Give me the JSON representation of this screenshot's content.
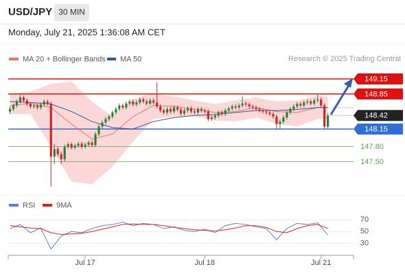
{
  "header": {
    "symbol": "USD/JPY",
    "timeframe": "30 MIN",
    "datetime": "Monday, July 21, 2025 1:36:08 AM CET",
    "credit": "Research © 2025 Trading Central"
  },
  "chart_data": [
    {
      "type": "candlestick",
      "up_color": "#2e7d32",
      "down_color": "#c62828",
      "xlim": [
        -0.5,
        100.5
      ],
      "ylim": [
        146.85,
        149.56
      ],
      "xticks": [
        {
          "value": 22,
          "label": "Jul 17"
        },
        {
          "value": 57,
          "label": "Jul 18"
        },
        {
          "value": 91,
          "label": "Jul 21"
        }
      ],
      "candles": [
        [
          148.5,
          148.6,
          148.45,
          148.55
        ],
        [
          148.55,
          148.66,
          148.51,
          148.62
        ],
        [
          148.62,
          148.74,
          148.58,
          148.7
        ],
        [
          148.7,
          148.83,
          148.66,
          148.78
        ],
        [
          148.78,
          148.82,
          148.68,
          148.72
        ],
        [
          148.72,
          148.76,
          148.61,
          148.65
        ],
        [
          148.65,
          148.69,
          148.56,
          148.6
        ],
        [
          148.6,
          148.66,
          148.56,
          148.62
        ],
        [
          148.62,
          148.66,
          148.54,
          148.58
        ],
        [
          148.58,
          148.68,
          148.54,
          148.64
        ],
        [
          148.64,
          148.74,
          148.6,
          148.7
        ],
        [
          148.7,
          148.74,
          148.62,
          148.66
        ],
        [
          148.66,
          148.7,
          147.0,
          147.6
        ],
        [
          147.6,
          147.85,
          147.45,
          147.75
        ],
        [
          147.75,
          147.8,
          147.6,
          147.65
        ],
        [
          147.65,
          147.7,
          147.45,
          147.55
        ],
        [
          147.55,
          147.84,
          147.5,
          147.8
        ],
        [
          147.8,
          147.89,
          147.76,
          147.85
        ],
        [
          147.85,
          147.89,
          147.74,
          147.78
        ],
        [
          147.78,
          147.86,
          147.74,
          147.82
        ],
        [
          147.82,
          147.9,
          147.78,
          147.86
        ],
        [
          147.86,
          147.9,
          147.76,
          147.8
        ],
        [
          147.8,
          147.88,
          147.76,
          147.84
        ],
        [
          147.84,
          147.92,
          147.8,
          147.88
        ],
        [
          147.88,
          147.92,
          147.79,
          147.83
        ],
        [
          147.83,
          148.09,
          147.79,
          148.05
        ],
        [
          148.05,
          148.24,
          148.01,
          148.2
        ],
        [
          148.2,
          148.32,
          148.16,
          148.28
        ],
        [
          148.28,
          148.39,
          148.24,
          148.35
        ],
        [
          148.35,
          148.44,
          148.31,
          148.4
        ],
        [
          148.4,
          148.52,
          148.36,
          148.48
        ],
        [
          148.48,
          148.59,
          148.44,
          148.55
        ],
        [
          148.55,
          148.66,
          148.51,
          148.62
        ],
        [
          148.62,
          148.66,
          148.54,
          148.58
        ],
        [
          148.58,
          148.7,
          148.54,
          148.66
        ],
        [
          148.66,
          148.74,
          148.62,
          148.7
        ],
        [
          148.7,
          148.74,
          148.6,
          148.64
        ],
        [
          148.64,
          148.72,
          148.6,
          148.68
        ],
        [
          148.68,
          148.78,
          148.64,
          148.74
        ],
        [
          148.74,
          148.78,
          148.66,
          148.7
        ],
        [
          148.7,
          148.74,
          148.62,
          148.66
        ],
        [
          148.66,
          148.76,
          148.62,
          148.72
        ],
        [
          148.72,
          148.76,
          148.64,
          148.68
        ],
        [
          148.68,
          149.08,
          148.56,
          148.6
        ],
        [
          148.6,
          148.64,
          148.48,
          148.52
        ],
        [
          148.52,
          148.56,
          148.44,
          148.48
        ],
        [
          148.48,
          148.59,
          148.44,
          148.55
        ],
        [
          148.55,
          148.59,
          148.46,
          148.5
        ],
        [
          148.5,
          148.62,
          148.46,
          148.58
        ],
        [
          148.58,
          148.62,
          148.5,
          148.54
        ],
        [
          148.54,
          148.58,
          148.42,
          148.46
        ],
        [
          148.46,
          148.56,
          148.42,
          148.52
        ],
        [
          148.52,
          148.6,
          148.48,
          148.56
        ],
        [
          148.56,
          148.6,
          148.46,
          148.5
        ],
        [
          148.5,
          148.54,
          148.44,
          148.48
        ],
        [
          148.48,
          148.59,
          148.44,
          148.55
        ],
        [
          148.55,
          148.59,
          148.48,
          148.52
        ],
        [
          148.52,
          148.56,
          148.46,
          148.5
        ],
        [
          148.5,
          148.54,
          148.31,
          148.35
        ],
        [
          148.35,
          148.42,
          148.31,
          148.38
        ],
        [
          148.38,
          148.46,
          148.34,
          148.42
        ],
        [
          148.42,
          148.52,
          148.38,
          148.48
        ],
        [
          148.48,
          148.52,
          148.41,
          148.45
        ],
        [
          148.45,
          148.56,
          148.41,
          148.52
        ],
        [
          148.52,
          148.6,
          148.48,
          148.56
        ],
        [
          148.56,
          148.64,
          148.52,
          148.6
        ],
        [
          148.6,
          148.64,
          148.54,
          148.58
        ],
        [
          148.58,
          148.66,
          148.54,
          148.62
        ],
        [
          148.62,
          148.8,
          148.58,
          148.66
        ],
        [
          148.66,
          148.7,
          148.6,
          148.64
        ],
        [
          148.64,
          148.68,
          148.56,
          148.6
        ],
        [
          148.6,
          148.64,
          148.54,
          148.58
        ],
        [
          148.58,
          148.62,
          148.51,
          148.55
        ],
        [
          148.55,
          148.59,
          148.48,
          148.52
        ],
        [
          148.52,
          148.56,
          148.46,
          148.5
        ],
        [
          148.5,
          148.54,
          148.44,
          148.48
        ],
        [
          148.48,
          148.52,
          148.41,
          148.45
        ],
        [
          148.45,
          148.49,
          148.36,
          148.4
        ],
        [
          148.4,
          148.44,
          148.15,
          148.25
        ],
        [
          148.25,
          148.34,
          148.15,
          148.3
        ],
        [
          148.3,
          148.42,
          148.26,
          148.38
        ],
        [
          148.38,
          148.52,
          148.34,
          148.48
        ],
        [
          148.48,
          148.59,
          148.44,
          148.55
        ],
        [
          148.55,
          148.64,
          148.51,
          148.6
        ],
        [
          148.6,
          148.69,
          148.56,
          148.65
        ],
        [
          148.65,
          148.69,
          148.58,
          148.62
        ],
        [
          148.62,
          148.72,
          148.58,
          148.68
        ],
        [
          148.68,
          148.74,
          148.64,
          148.7
        ],
        [
          148.7,
          148.74,
          148.62,
          148.66
        ],
        [
          148.66,
          148.76,
          148.62,
          148.72
        ],
        [
          148.72,
          148.84,
          148.68,
          148.74
        ],
        [
          148.74,
          148.78,
          148.58,
          148.62
        ],
        [
          148.62,
          148.66,
          148.15,
          148.2
        ],
        [
          148.2,
          148.46,
          148.16,
          148.42
        ]
      ],
      "overlay_x": [
        0,
        6,
        12,
        18,
        24,
        30,
        36,
        42,
        48,
        54,
        60,
        66,
        72,
        78,
        84,
        90,
        93
      ],
      "series": [
        {
          "name": "MA 20 + Bollinger Bands",
          "color": "#e8736c",
          "values": [
            148.62,
            148.66,
            148.58,
            148.25,
            147.95,
            148.05,
            148.4,
            148.62,
            148.6,
            148.55,
            148.48,
            148.5,
            148.58,
            148.5,
            148.48,
            148.58,
            148.58
          ]
        },
        {
          "name": "MA 50",
          "color": "#2f5597",
          "values": [
            148.7,
            148.68,
            148.65,
            148.5,
            148.3,
            148.18,
            148.15,
            148.3,
            148.38,
            148.42,
            148.44,
            148.48,
            148.52,
            148.52,
            148.54,
            148.58,
            148.58
          ]
        }
      ],
      "bands": {
        "color": "#f8c8c8",
        "upper": [
          148.85,
          148.9,
          149.05,
          149.1,
          148.7,
          148.4,
          148.75,
          148.85,
          148.8,
          148.72,
          148.65,
          148.72,
          148.78,
          148.7,
          148.72,
          148.82,
          148.8
        ],
        "lower": [
          148.45,
          148.45,
          147.8,
          147.1,
          147.05,
          147.4,
          147.9,
          148.35,
          148.4,
          148.4,
          148.32,
          148.3,
          148.38,
          148.25,
          148.2,
          148.35,
          148.35
        ]
      },
      "levels": [
        {
          "value": 149.15,
          "label": "149.15",
          "color": "#e01010",
          "boxed": true
        },
        {
          "value": 148.85,
          "label": "148.85",
          "color": "#e01010",
          "boxed": true
        },
        {
          "value": 148.15,
          "label": "148.15",
          "color": "#2e6fd8",
          "boxed": true
        },
        {
          "value": 147.8,
          "label": "147.80",
          "color": "#5aa550",
          "boxed": false
        },
        {
          "value": 147.5,
          "label": "147.50",
          "color": "#5aa550",
          "boxed": false
        }
      ],
      "last": {
        "value": 148.42,
        "label": "148.42",
        "color": "#222222"
      }
    },
    {
      "type": "line",
      "xlim": [
        -0.5,
        100.5
      ],
      "ylim": [
        14,
        82
      ],
      "yticks": [
        30,
        50,
        70
      ],
      "x": [
        0,
        3,
        6,
        9,
        12,
        15,
        18,
        21,
        24,
        27,
        30,
        33,
        36,
        39,
        42,
        45,
        48,
        51,
        54,
        57,
        60,
        63,
        66,
        69,
        72,
        75,
        78,
        81,
        84,
        87,
        90,
        93
      ],
      "series": [
        {
          "name": "RSI",
          "color": "#5b7fd6",
          "values": [
            55,
            62,
            48,
            56,
            20,
            42,
            50,
            48,
            55,
            60,
            62,
            66,
            60,
            64,
            62,
            55,
            58,
            52,
            50,
            54,
            48,
            60,
            64,
            62,
            58,
            55,
            36,
            55,
            64,
            62,
            65,
            44
          ]
        },
        {
          "name": "9MA",
          "color": "#e02020",
          "values": [
            60,
            58,
            56,
            55,
            48,
            45,
            46,
            47,
            50,
            54,
            58,
            62,
            63,
            62,
            62,
            60,
            57,
            55,
            53,
            52,
            51,
            53,
            56,
            60,
            60,
            57,
            50,
            48,
            55,
            60,
            62,
            55
          ]
        }
      ]
    }
  ]
}
